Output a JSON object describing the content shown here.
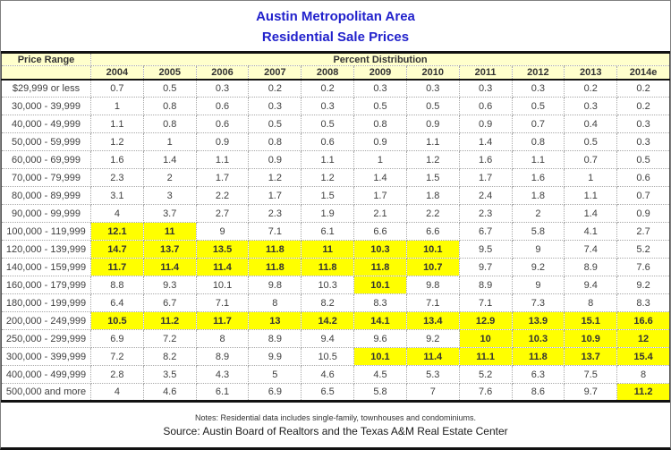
{
  "title": {
    "line1": "Austin Metropolitan Area",
    "line2": "Residential Sale Prices"
  },
  "table": {
    "corner_header": "Price Range",
    "group_header": "Percent Distribution",
    "years": [
      "2004",
      "2005",
      "2006",
      "2007",
      "2008",
      "2009",
      "2010",
      "2011",
      "2012",
      "2013",
      "2014e"
    ],
    "rows": [
      {
        "label": "$29,999 or less",
        "values": [
          "0.7",
          "0.5",
          "0.3",
          "0.2",
          "0.2",
          "0.3",
          "0.3",
          "0.3",
          "0.3",
          "0.2",
          "0.2"
        ],
        "highlight": []
      },
      {
        "label": "30,000 - 39,999",
        "values": [
          "1",
          "0.8",
          "0.6",
          "0.3",
          "0.3",
          "0.5",
          "0.5",
          "0.6",
          "0.5",
          "0.3",
          "0.2"
        ],
        "highlight": []
      },
      {
        "label": "40,000 - 49,999",
        "values": [
          "1.1",
          "0.8",
          "0.6",
          "0.5",
          "0.5",
          "0.8",
          "0.9",
          "0.9",
          "0.7",
          "0.4",
          "0.3"
        ],
        "highlight": []
      },
      {
        "label": "50,000 - 59,999",
        "values": [
          "1.2",
          "1",
          "0.9",
          "0.8",
          "0.6",
          "0.9",
          "1.1",
          "1.4",
          "0.8",
          "0.5",
          "0.3"
        ],
        "highlight": []
      },
      {
        "label": "60,000 - 69,999",
        "values": [
          "1.6",
          "1.4",
          "1.1",
          "0.9",
          "1.1",
          "1",
          "1.2",
          "1.6",
          "1.1",
          "0.7",
          "0.5"
        ],
        "highlight": []
      },
      {
        "label": "70,000 - 79,999",
        "values": [
          "2.3",
          "2",
          "1.7",
          "1.2",
          "1.2",
          "1.4",
          "1.5",
          "1.7",
          "1.6",
          "1",
          "0.6"
        ],
        "highlight": []
      },
      {
        "label": "80,000 - 89,999",
        "values": [
          "3.1",
          "3",
          "2.2",
          "1.7",
          "1.5",
          "1.7",
          "1.8",
          "2.4",
          "1.8",
          "1.1",
          "0.7"
        ],
        "highlight": []
      },
      {
        "label": "90,000 - 99,999",
        "values": [
          "4",
          "3.7",
          "2.7",
          "2.3",
          "1.9",
          "2.1",
          "2.2",
          "2.3",
          "2",
          "1.4",
          "0.9"
        ],
        "highlight": []
      },
      {
        "label": "100,000 - 119,999",
        "values": [
          "12.1",
          "11",
          "9",
          "7.1",
          "6.1",
          "6.6",
          "6.6",
          "6.7",
          "5.8",
          "4.1",
          "2.7"
        ],
        "highlight": [
          0,
          1
        ]
      },
      {
        "label": "120,000 - 139,999",
        "values": [
          "14.7",
          "13.7",
          "13.5",
          "11.8",
          "11",
          "10.3",
          "10.1",
          "9.5",
          "9",
          "7.4",
          "5.2"
        ],
        "highlight": [
          0,
          1,
          2,
          3,
          4,
          5,
          6
        ]
      },
      {
        "label": "140,000 - 159,999",
        "values": [
          "11.7",
          "11.4",
          "11.4",
          "11.8",
          "11.8",
          "11.8",
          "10.7",
          "9.7",
          "9.2",
          "8.9",
          "7.6"
        ],
        "highlight": [
          0,
          1,
          2,
          3,
          4,
          5,
          6
        ]
      },
      {
        "label": "160,000 - 179,999",
        "values": [
          "8.8",
          "9.3",
          "10.1",
          "9.8",
          "10.3",
          "10.1",
          "9.8",
          "8.9",
          "9",
          "9.4",
          "9.2"
        ],
        "highlight": [
          5
        ]
      },
      {
        "label": "180,000 - 199,999",
        "values": [
          "6.4",
          "6.7",
          "7.1",
          "8",
          "8.2",
          "8.3",
          "7.1",
          "7.1",
          "7.3",
          "8",
          "8.3"
        ],
        "highlight": []
      },
      {
        "label": "200,000 - 249,999",
        "values": [
          "10.5",
          "11.2",
          "11.7",
          "13",
          "14.2",
          "14.1",
          "13.4",
          "12.9",
          "13.9",
          "15.1",
          "16.6"
        ],
        "highlight": [
          0,
          1,
          2,
          3,
          4,
          5,
          6,
          7,
          8,
          9,
          10
        ]
      },
      {
        "label": "250,000 - 299,999",
        "values": [
          "6.9",
          "7.2",
          "8",
          "8.9",
          "9.4",
          "9.6",
          "9.2",
          "10",
          "10.3",
          "10.9",
          "12"
        ],
        "highlight": [
          7,
          8,
          9,
          10
        ]
      },
      {
        "label": "300,000 - 399,999",
        "values": [
          "7.2",
          "8.2",
          "8.9",
          "9.9",
          "10.5",
          "10.1",
          "11.4",
          "11.1",
          "11.8",
          "13.7",
          "15.4"
        ],
        "highlight": [
          5,
          6,
          7,
          8,
          9,
          10
        ]
      },
      {
        "label": "400,000 - 499,999",
        "values": [
          "2.8",
          "3.5",
          "4.3",
          "5",
          "4.6",
          "4.5",
          "5.3",
          "5.2",
          "6.3",
          "7.5",
          "8"
        ],
        "highlight": []
      },
      {
        "label": "500,000 and more",
        "values": [
          "4",
          "4.6",
          "6.1",
          "6.9",
          "6.5",
          "5.8",
          "7",
          "7.6",
          "8.6",
          "9.7",
          "11.2"
        ],
        "highlight": [
          10
        ]
      }
    ]
  },
  "footer": {
    "notes": "Notes: Residential data includes single-family, townhouses and condominiums.",
    "source": "Source: Austin Board of Realtors and the Texas A&M Real Estate Center"
  },
  "colors": {
    "title_blue": "#2222cc",
    "header_bg": "#ffffcc",
    "highlight_yellow": "#ffff00",
    "text": "#404040"
  }
}
